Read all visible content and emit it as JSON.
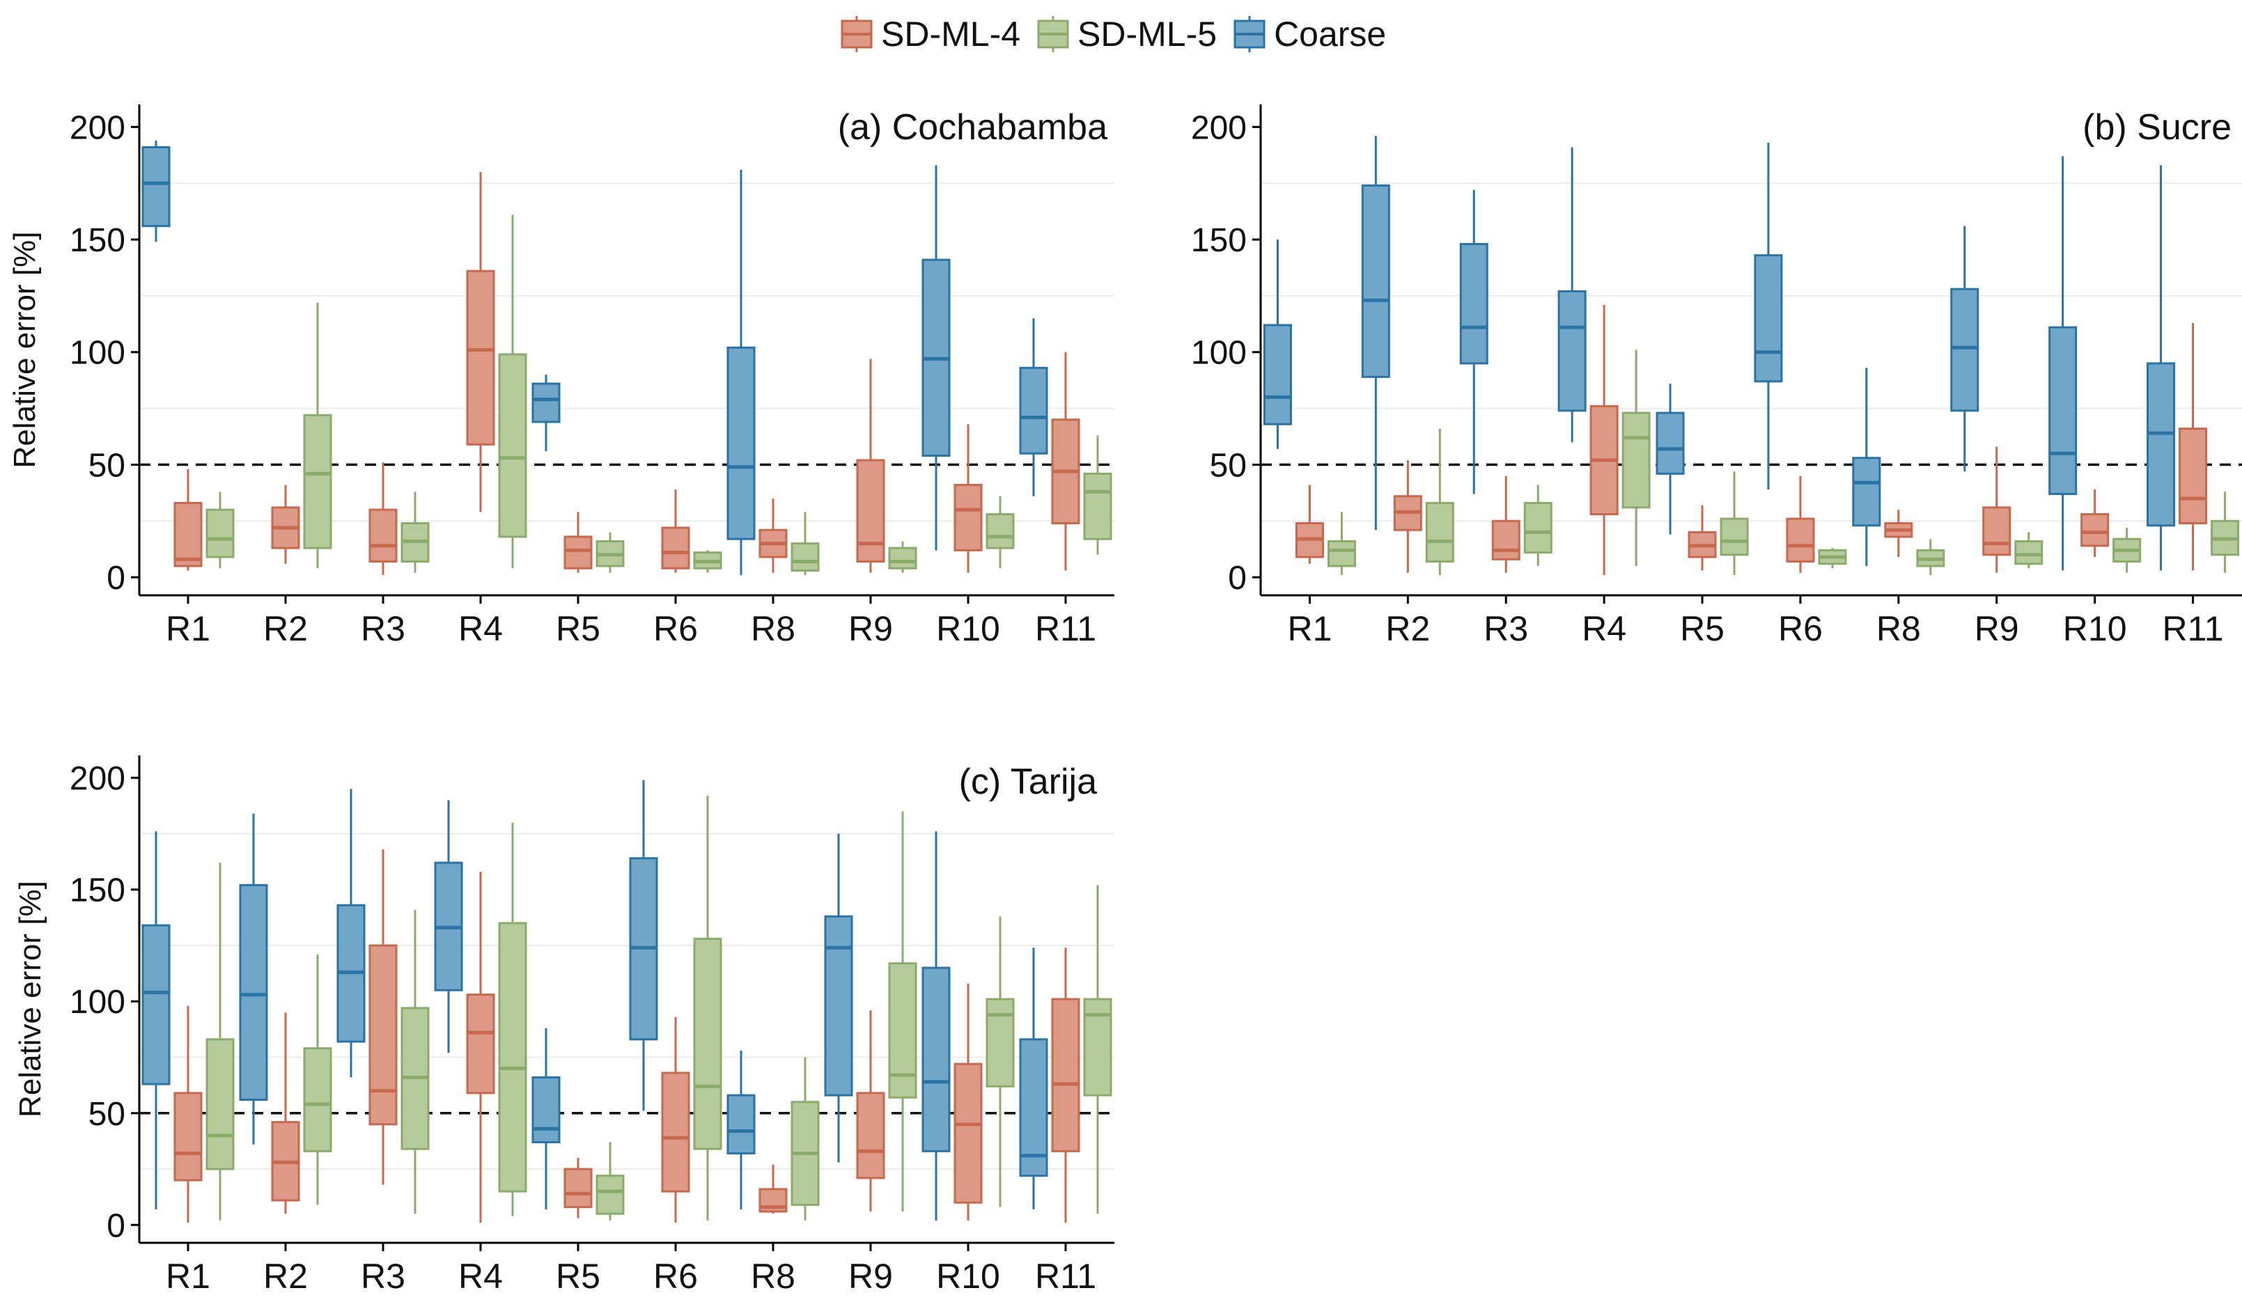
{
  "legend": [
    {
      "name": "SD-ML-4",
      "fill": "#dc9a86",
      "stroke": "#c9684c"
    },
    {
      "name": "SD-ML-5",
      "fill": "#b5cb9b",
      "stroke": "#8bab6b"
    },
    {
      "name": "Coarse",
      "fill": "#6fa6c9",
      "stroke": "#2a74a5"
    }
  ],
  "chart_data": [
    {
      "type": "boxplot",
      "title": "(a) Cochabamba",
      "ylabel": "Relative error [%]",
      "ylim": [
        -8,
        210
      ],
      "yticks": [
        0,
        50,
        100,
        150,
        200
      ],
      "threshold": 50,
      "categories": [
        "R1",
        "R2",
        "R3",
        "R4",
        "R5",
        "R6",
        "R8",
        "R9",
        "R10",
        "R11"
      ],
      "series": [
        {
          "name": "Coarse",
          "boxes": [
            {
              "min": 149,
              "q1": 156,
              "median": 175,
              "q3": 191,
              "max": 194
            },
            null,
            null,
            null,
            {
              "min": 56,
              "q1": 69,
              "median": 79,
              "q3": 86,
              "max": 90
            },
            null,
            {
              "min": 1,
              "q1": 17,
              "median": 49,
              "q3": 102,
              "max": 181
            },
            null,
            {
              "min": 12,
              "q1": 54,
              "median": 97,
              "q3": 141,
              "max": 183
            },
            {
              "min": 36,
              "q1": 55,
              "median": 71,
              "q3": 93,
              "max": 115
            }
          ]
        },
        {
          "name": "SD-ML-4",
          "boxes": [
            {
              "min": 3,
              "q1": 5,
              "median": 8,
              "q3": 33,
              "max": 48
            },
            {
              "min": 6,
              "q1": 13,
              "median": 22,
              "q3": 31,
              "max": 41
            },
            {
              "min": 1,
              "q1": 7,
              "median": 14,
              "q3": 30,
              "max": 51
            },
            {
              "min": 29,
              "q1": 59,
              "median": 101,
              "q3": 136,
              "max": 180
            },
            {
              "min": 2,
              "q1": 4,
              "median": 12,
              "q3": 18,
              "max": 29
            },
            {
              "min": 2,
              "q1": 4,
              "median": 11,
              "q3": 22,
              "max": 39
            },
            {
              "min": 2,
              "q1": 9,
              "median": 15,
              "q3": 21,
              "max": 35
            },
            {
              "min": 2,
              "q1": 7,
              "median": 15,
              "q3": 52,
              "max": 97
            },
            {
              "min": 2,
              "q1": 12,
              "median": 30,
              "q3": 41,
              "max": 68
            },
            {
              "min": 3,
              "q1": 24,
              "median": 47,
              "q3": 70,
              "max": 100
            }
          ]
        },
        {
          "name": "SD-ML-5",
          "boxes": [
            {
              "min": 4,
              "q1": 9,
              "median": 17,
              "q3": 30,
              "max": 38
            },
            {
              "min": 4,
              "q1": 13,
              "median": 46,
              "q3": 72,
              "max": 122
            },
            {
              "min": 2,
              "q1": 7,
              "median": 16,
              "q3": 24,
              "max": 38
            },
            {
              "min": 4,
              "q1": 18,
              "median": 53,
              "q3": 99,
              "max": 161
            },
            {
              "min": 2,
              "q1": 5,
              "median": 10,
              "q3": 16,
              "max": 20
            },
            {
              "min": 2,
              "q1": 4,
              "median": 7,
              "q3": 11,
              "max": 12
            },
            {
              "min": 1,
              "q1": 3,
              "median": 7,
              "q3": 15,
              "max": 29
            },
            {
              "min": 2,
              "q1": 4,
              "median": 7,
              "q3": 13,
              "max": 16
            },
            {
              "min": 4,
              "q1": 13,
              "median": 18,
              "q3": 28,
              "max": 36
            },
            {
              "min": 10,
              "q1": 17,
              "median": 38,
              "q3": 46,
              "max": 63
            }
          ]
        }
      ]
    },
    {
      "type": "boxplot",
      "title": "(b) Sucre",
      "ylabel": "",
      "ylim": [
        -8,
        210
      ],
      "yticks": [
        0,
        50,
        100,
        150,
        200
      ],
      "threshold": 50,
      "categories": [
        "R1",
        "R2",
        "R3",
        "R4",
        "R5",
        "R6",
        "R8",
        "R9",
        "R10",
        "R11"
      ],
      "series": [
        {
          "name": "Coarse",
          "boxes": [
            {
              "min": 57,
              "q1": 68,
              "median": 80,
              "q3": 112,
              "max": 150
            },
            {
              "min": 21,
              "q1": 89,
              "median": 123,
              "q3": 174,
              "max": 196
            },
            {
              "min": 37,
              "q1": 95,
              "median": 111,
              "q3": 148,
              "max": 172
            },
            {
              "min": 60,
              "q1": 74,
              "median": 111,
              "q3": 127,
              "max": 191
            },
            {
              "min": 19,
              "q1": 46,
              "median": 57,
              "q3": 73,
              "max": 86
            },
            {
              "min": 39,
              "q1": 87,
              "median": 100,
              "q3": 143,
              "max": 193
            },
            {
              "min": 5,
              "q1": 23,
              "median": 42,
              "q3": 53,
              "max": 93
            },
            {
              "min": 47,
              "q1": 74,
              "median": 102,
              "q3": 128,
              "max": 156
            },
            {
              "min": 3,
              "q1": 37,
              "median": 55,
              "q3": 111,
              "max": 187
            },
            {
              "min": 3,
              "q1": 23,
              "median": 64,
              "q3": 95,
              "max": 183
            }
          ]
        },
        {
          "name": "SD-ML-4",
          "boxes": [
            {
              "min": 6,
              "q1": 9,
              "median": 17,
              "q3": 24,
              "max": 41
            },
            {
              "min": 2,
              "q1": 21,
              "median": 29,
              "q3": 36,
              "max": 52
            },
            {
              "min": 2,
              "q1": 8,
              "median": 12,
              "q3": 25,
              "max": 45
            },
            {
              "min": 1,
              "q1": 28,
              "median": 52,
              "q3": 76,
              "max": 121
            },
            {
              "min": 3,
              "q1": 9,
              "median": 14,
              "q3": 20,
              "max": 32
            },
            {
              "min": 2,
              "q1": 7,
              "median": 14,
              "q3": 26,
              "max": 45
            },
            {
              "min": 9,
              "q1": 18,
              "median": 21,
              "q3": 24,
              "max": 30
            },
            {
              "min": 2,
              "q1": 10,
              "median": 15,
              "q3": 31,
              "max": 58
            },
            {
              "min": 9,
              "q1": 14,
              "median": 20,
              "q3": 28,
              "max": 39
            },
            {
              "min": 3,
              "q1": 24,
              "median": 35,
              "q3": 66,
              "max": 113
            }
          ]
        },
        {
          "name": "SD-ML-5",
          "boxes": [
            {
              "min": 1,
              "q1": 5,
              "median": 12,
              "q3": 16,
              "max": 29
            },
            {
              "min": 1,
              "q1": 7,
              "median": 16,
              "q3": 33,
              "max": 66
            },
            {
              "min": 5,
              "q1": 11,
              "median": 20,
              "q3": 33,
              "max": 41
            },
            {
              "min": 5,
              "q1": 31,
              "median": 62,
              "q3": 73,
              "max": 101
            },
            {
              "min": 1,
              "q1": 10,
              "median": 16,
              "q3": 26,
              "max": 47
            },
            {
              "min": 4,
              "q1": 6,
              "median": 9,
              "q3": 12,
              "max": 13
            },
            {
              "min": 1,
              "q1": 5,
              "median": 8,
              "q3": 12,
              "max": 17
            },
            {
              "min": 4,
              "q1": 6,
              "median": 10,
              "q3": 16,
              "max": 20
            },
            {
              "min": 2,
              "q1": 7,
              "median": 12,
              "q3": 17,
              "max": 22
            },
            {
              "min": 2,
              "q1": 10,
              "median": 17,
              "q3": 25,
              "max": 38
            }
          ]
        }
      ]
    },
    {
      "type": "boxplot",
      "title": "(c) Tarija",
      "ylabel": "Relative error [%]",
      "ylim": [
        -8,
        210
      ],
      "yticks": [
        0,
        50,
        100,
        150,
        200
      ],
      "threshold": 50,
      "categories": [
        "R1",
        "R2",
        "R3",
        "R4",
        "R5",
        "R6",
        "R8",
        "R9",
        "R10",
        "R11"
      ],
      "series": [
        {
          "name": "Coarse",
          "boxes": [
            {
              "min": 7,
              "q1": 63,
              "median": 104,
              "q3": 134,
              "max": 176
            },
            {
              "min": 36,
              "q1": 56,
              "median": 103,
              "q3": 152,
              "max": 184
            },
            {
              "min": 66,
              "q1": 82,
              "median": 113,
              "q3": 143,
              "max": 195
            },
            {
              "min": 77,
              "q1": 105,
              "median": 133,
              "q3": 162,
              "max": 190
            },
            {
              "min": 7,
              "q1": 37,
              "median": 43,
              "q3": 66,
              "max": 88
            },
            {
              "min": 51,
              "q1": 83,
              "median": 124,
              "q3": 164,
              "max": 199
            },
            {
              "min": 7,
              "q1": 32,
              "median": 42,
              "q3": 58,
              "max": 78
            },
            {
              "min": 28,
              "q1": 58,
              "median": 124,
              "q3": 138,
              "max": 175
            },
            {
              "min": 2,
              "q1": 33,
              "median": 64,
              "q3": 115,
              "max": 176
            },
            {
              "min": 7,
              "q1": 22,
              "median": 31,
              "q3": 83,
              "max": 124
            }
          ]
        },
        {
          "name": "SD-ML-4",
          "boxes": [
            {
              "min": 1,
              "q1": 20,
              "median": 32,
              "q3": 59,
              "max": 98
            },
            {
              "min": 5,
              "q1": 11,
              "median": 28,
              "q3": 46,
              "max": 95
            },
            {
              "min": 18,
              "q1": 45,
              "median": 60,
              "q3": 125,
              "max": 168
            },
            {
              "min": 1,
              "q1": 59,
              "median": 86,
              "q3": 103,
              "max": 158
            },
            {
              "min": 3,
              "q1": 8,
              "median": 14,
              "q3": 25,
              "max": 30
            },
            {
              "min": 1,
              "q1": 15,
              "median": 39,
              "q3": 68,
              "max": 93
            },
            {
              "min": 5,
              "q1": 6,
              "median": 8,
              "q3": 16,
              "max": 27
            },
            {
              "min": 6,
              "q1": 21,
              "median": 33,
              "q3": 59,
              "max": 96
            },
            {
              "min": 2,
              "q1": 10,
              "median": 45,
              "q3": 72,
              "max": 108
            },
            {
              "min": 1,
              "q1": 33,
              "median": 63,
              "q3": 101,
              "max": 124
            }
          ]
        },
        {
          "name": "SD-ML-5",
          "boxes": [
            {
              "min": 2,
              "q1": 25,
              "median": 40,
              "q3": 83,
              "max": 162
            },
            {
              "min": 9,
              "q1": 33,
              "median": 54,
              "q3": 79,
              "max": 121
            },
            {
              "min": 5,
              "q1": 34,
              "median": 66,
              "q3": 97,
              "max": 141
            },
            {
              "min": 4,
              "q1": 15,
              "median": 70,
              "q3": 135,
              "max": 180
            },
            {
              "min": 2,
              "q1": 5,
              "median": 15,
              "q3": 22,
              "max": 37
            },
            {
              "min": 2,
              "q1": 34,
              "median": 62,
              "q3": 128,
              "max": 192
            },
            {
              "min": 2,
              "q1": 9,
              "median": 32,
              "q3": 55,
              "max": 75
            },
            {
              "min": 6,
              "q1": 57,
              "median": 67,
              "q3": 117,
              "max": 185
            },
            {
              "min": 8,
              "q1": 62,
              "median": 94,
              "q3": 101,
              "max": 138
            },
            {
              "min": 5,
              "q1": 58,
              "median": 94,
              "q3": 101,
              "max": 152
            }
          ]
        }
      ]
    }
  ]
}
